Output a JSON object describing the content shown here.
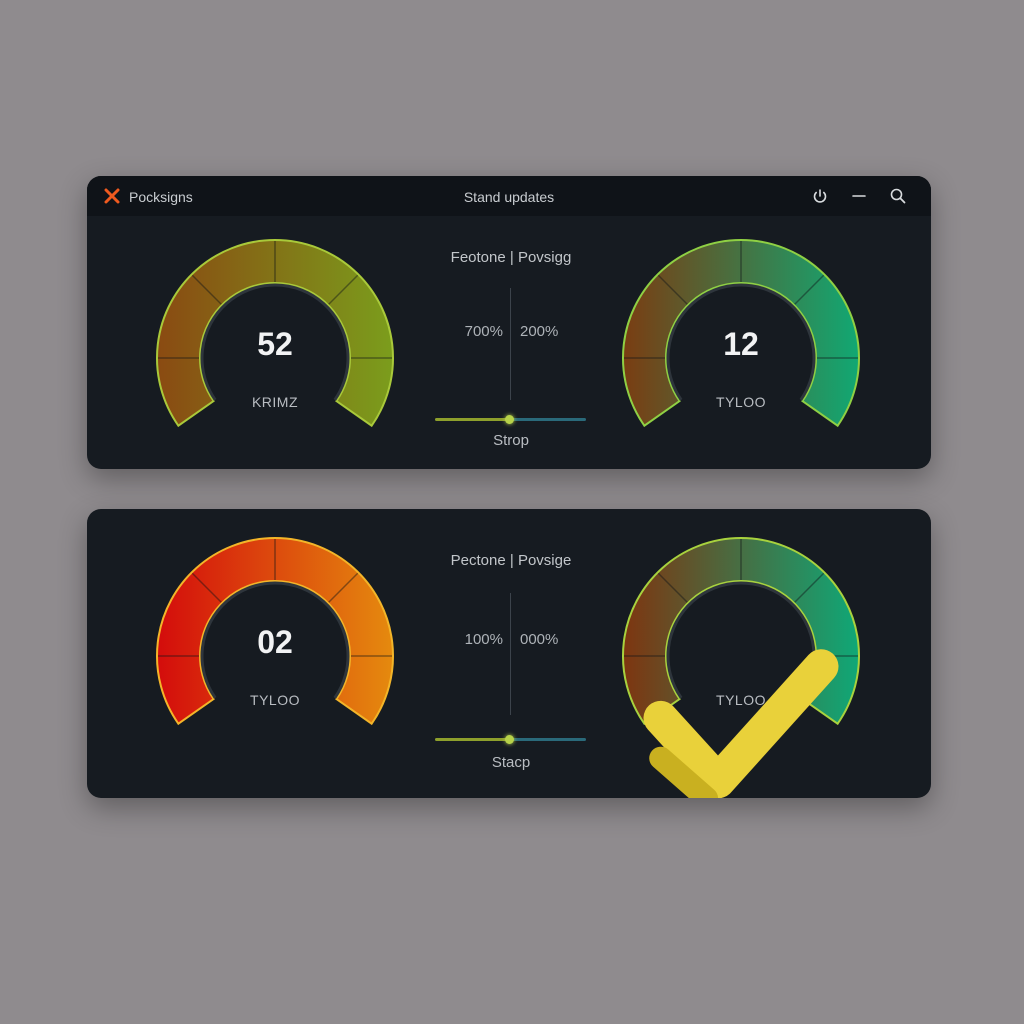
{
  "window": {
    "app_name": "Pocksigns",
    "title": "Stand updates",
    "app_icon": "x-mark-icon",
    "accent_color": "#ef5a1f",
    "controls": [
      "power-icon",
      "minimize-icon",
      "search-icon"
    ]
  },
  "panels": [
    {
      "left_gauge": {
        "value": "52",
        "label": "KRIMZ",
        "color_start": "#8a4a12",
        "color_end": "#7b9d1c",
        "glow": "#a9c93a"
      },
      "center": {
        "header": "Feotone | Povsigg",
        "left_value": "700%",
        "right_value": "200%",
        "slider_level": 0.5,
        "caption": "Strop"
      },
      "right_gauge": {
        "value": "12",
        "label": "TYLOO",
        "color_start": "#7a3d12",
        "color_end": "#11a873",
        "glow": "#8fd044"
      }
    },
    {
      "left_gauge": {
        "value": "02",
        "label": "TYLOO",
        "color_start": "#d40c0c",
        "color_end": "#e58a0e",
        "glow": "#f3b529"
      },
      "center": {
        "header": "Pectone | Povsige",
        "left_value": "100%",
        "right_value": "000%",
        "slider_level": 0.5,
        "caption": "Stacp"
      },
      "right_gauge": {
        "icon": "checkmark-icon",
        "icon_color": "#e9d13a",
        "label": "TYLOO",
        "color_start": "#7e3510",
        "color_end": "#0fa877",
        "glow": "#a8d23e"
      }
    }
  ]
}
